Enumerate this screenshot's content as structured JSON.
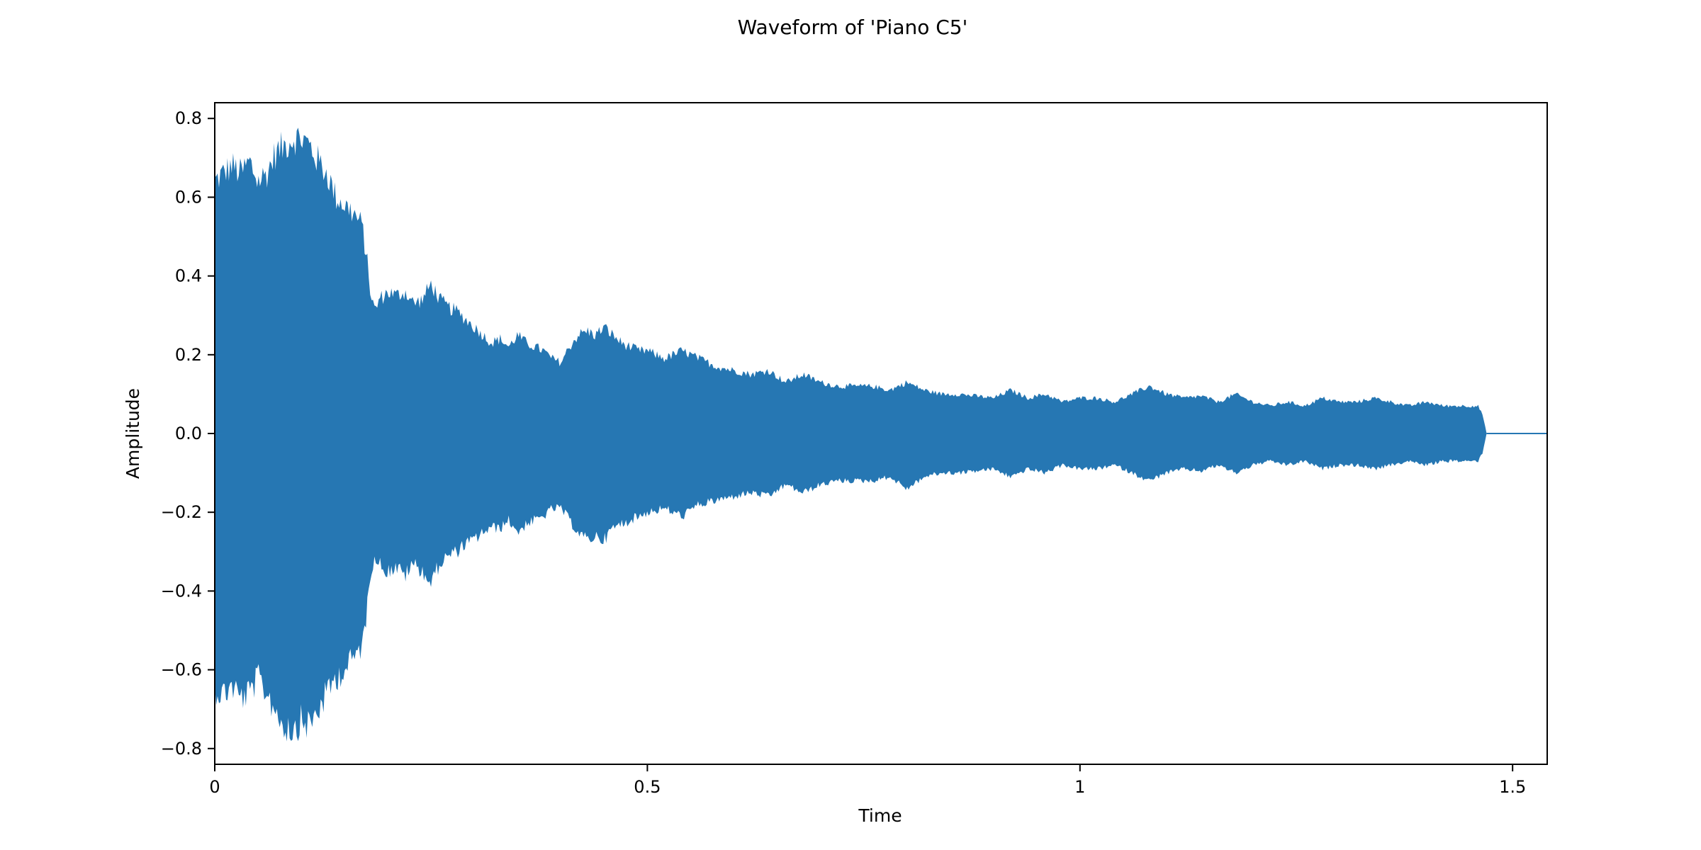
{
  "chart_data": {
    "type": "area",
    "title": "Waveform of 'Piano C5'",
    "xlabel": "Time",
    "ylabel": "Amplitude",
    "xlim": [
      0,
      1.54
    ],
    "ylim": [
      -0.84,
      0.84
    ],
    "grid": false,
    "legend": "none",
    "color": "#2677b3",
    "x_ticks": [
      {
        "value": 0,
        "label": "0"
      },
      {
        "value": 0.5,
        "label": "0.5"
      },
      {
        "value": 1,
        "label": "1"
      },
      {
        "value": 1.5,
        "label": "1.5"
      }
    ],
    "y_ticks": [
      {
        "value": 0.8,
        "label": "0.8"
      },
      {
        "value": 0.6,
        "label": "0.6"
      },
      {
        "value": 0.4,
        "label": "0.4"
      },
      {
        "value": 0.2,
        "label": "0.2"
      },
      {
        "value": 0.0,
        "label": "0.0"
      },
      {
        "value": -0.2,
        "label": "−0.2"
      },
      {
        "value": -0.4,
        "label": "−0.4"
      },
      {
        "value": -0.6,
        "label": "−0.6"
      },
      {
        "value": -0.8,
        "label": "−0.8"
      }
    ],
    "series": [
      {
        "x": [
          0.0,
          0.01,
          0.02,
          0.03,
          0.04,
          0.05,
          0.06,
          0.07,
          0.08,
          0.09,
          0.1,
          0.11,
          0.12,
          0.13,
          0.14,
          0.15,
          0.16,
          0.17,
          0.176,
          0.18,
          0.185,
          0.19,
          0.2,
          0.21,
          0.22,
          0.23,
          0.24,
          0.25,
          0.26,
          0.27,
          0.28,
          0.29,
          0.3,
          0.31,
          0.32,
          0.33,
          0.34,
          0.35,
          0.36,
          0.37,
          0.38,
          0.39,
          0.4,
          0.41,
          0.42,
          0.43,
          0.44,
          0.45,
          0.46,
          0.47,
          0.48,
          0.49,
          0.5,
          0.52,
          0.54,
          0.56,
          0.58,
          0.6,
          0.62,
          0.64,
          0.66,
          0.68,
          0.7,
          0.72,
          0.74,
          0.76,
          0.78,
          0.8,
          0.82,
          0.84,
          0.86,
          0.88,
          0.9,
          0.92,
          0.94,
          0.96,
          0.98,
          1.0,
          1.02,
          1.04,
          1.06,
          1.08,
          1.1,
          1.12,
          1.14,
          1.16,
          1.18,
          1.2,
          1.22,
          1.24,
          1.26,
          1.28,
          1.3,
          1.32,
          1.34,
          1.36,
          1.38,
          1.4,
          1.42,
          1.44,
          1.46,
          1.465,
          1.47
        ],
        "upper": [
          0.64,
          0.66,
          0.68,
          0.66,
          0.69,
          0.64,
          0.66,
          0.71,
          0.73,
          0.75,
          0.75,
          0.73,
          0.69,
          0.66,
          0.6,
          0.58,
          0.56,
          0.53,
          0.44,
          0.36,
          0.31,
          0.34,
          0.36,
          0.35,
          0.36,
          0.33,
          0.34,
          0.38,
          0.34,
          0.32,
          0.31,
          0.29,
          0.27,
          0.25,
          0.23,
          0.24,
          0.22,
          0.25,
          0.23,
          0.22,
          0.21,
          0.19,
          0.18,
          0.22,
          0.25,
          0.26,
          0.25,
          0.27,
          0.25,
          0.23,
          0.22,
          0.21,
          0.21,
          0.19,
          0.21,
          0.19,
          0.17,
          0.16,
          0.15,
          0.16,
          0.13,
          0.15,
          0.13,
          0.12,
          0.12,
          0.12,
          0.11,
          0.13,
          0.11,
          0.1,
          0.1,
          0.095,
          0.09,
          0.11,
          0.09,
          0.1,
          0.08,
          0.09,
          0.09,
          0.08,
          0.1,
          0.12,
          0.1,
          0.09,
          0.095,
          0.08,
          0.1,
          0.08,
          0.07,
          0.08,
          0.07,
          0.09,
          0.08,
          0.08,
          0.09,
          0.08,
          0.07,
          0.08,
          0.07,
          0.07,
          0.07,
          0.05,
          0.0
        ],
        "lower": [
          -0.65,
          -0.66,
          -0.64,
          -0.67,
          -0.66,
          -0.62,
          -0.66,
          -0.7,
          -0.74,
          -0.75,
          -0.73,
          -0.74,
          -0.7,
          -0.66,
          -0.62,
          -0.6,
          -0.57,
          -0.54,
          -0.45,
          -0.35,
          -0.31,
          -0.33,
          -0.35,
          -0.34,
          -0.36,
          -0.33,
          -0.35,
          -0.38,
          -0.33,
          -0.31,
          -0.3,
          -0.28,
          -0.27,
          -0.25,
          -0.24,
          -0.24,
          -0.22,
          -0.25,
          -0.23,
          -0.22,
          -0.21,
          -0.19,
          -0.19,
          -0.22,
          -0.25,
          -0.27,
          -0.26,
          -0.27,
          -0.24,
          -0.23,
          -0.22,
          -0.21,
          -0.2,
          -0.19,
          -0.21,
          -0.18,
          -0.17,
          -0.16,
          -0.15,
          -0.16,
          -0.13,
          -0.15,
          -0.13,
          -0.12,
          -0.12,
          -0.12,
          -0.11,
          -0.14,
          -0.11,
          -0.1,
          -0.1,
          -0.095,
          -0.09,
          -0.11,
          -0.09,
          -0.1,
          -0.08,
          -0.09,
          -0.09,
          -0.08,
          -0.1,
          -0.12,
          -0.1,
          -0.09,
          -0.095,
          -0.08,
          -0.1,
          -0.08,
          -0.07,
          -0.08,
          -0.07,
          -0.09,
          -0.08,
          -0.08,
          -0.09,
          -0.08,
          -0.07,
          -0.08,
          -0.07,
          -0.07,
          -0.07,
          -0.05,
          0.0
        ]
      }
    ]
  }
}
